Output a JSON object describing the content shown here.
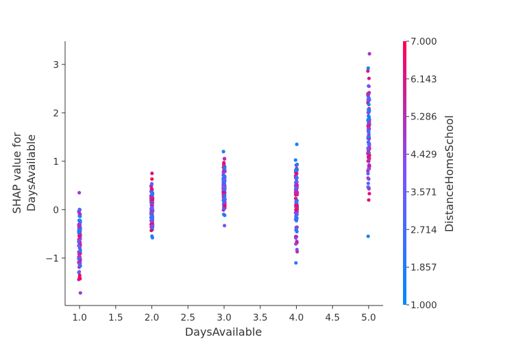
{
  "chart_data": {
    "type": "scatter",
    "xlabel": "DaysAvailable",
    "ylabel_lines": [
      "SHAP value for",
      "DaysAvailable"
    ],
    "xlim": [
      0.8,
      5.2
    ],
    "ylim": [
      -1.98,
      3.48
    ],
    "x_ticks": [
      1.0,
      1.5,
      2.0,
      2.5,
      3.0,
      3.5,
      4.0,
      4.5,
      5.0
    ],
    "x_tick_labels": [
      "1.0",
      "1.5",
      "2.0",
      "2.5",
      "3.0",
      "3.5",
      "4.0",
      "4.5",
      "5.0"
    ],
    "y_ticks": [
      -1,
      0,
      1,
      2,
      3
    ],
    "y_tick_labels": [
      "−1",
      "0",
      "1",
      "2",
      "3"
    ],
    "colorbar": {
      "label": "DistanceHomeSchool",
      "range": [
        1.0,
        7.0
      ],
      "tick_values": [
        1.0,
        1.857,
        2.714,
        3.571,
        4.429,
        5.286,
        6.143,
        7.0
      ],
      "tick_labels": [
        "1.000",
        "1.857",
        "2.714",
        "3.571",
        "4.429",
        "5.286",
        "6.143",
        "7.000"
      ],
      "low_color": "#008bfb",
      "mid_color": "#7c52ff",
      "high_color": "#ff0051"
    },
    "groups": [
      {
        "x": 1.0,
        "ymin": -1.72,
        "ymax": 0.35,
        "center": -0.7
      },
      {
        "x": 2.0,
        "ymin": -0.58,
        "ymax": 0.75,
        "center": 0.05
      },
      {
        "x": 3.0,
        "ymin": -0.33,
        "ymax": 1.2,
        "center": 0.45
      },
      {
        "x": 4.0,
        "ymin": -1.1,
        "ymax": 1.35,
        "center": 0.3
      },
      {
        "x": 5.0,
        "ymin": -0.55,
        "ymax": 3.22,
        "center": 1.4
      }
    ],
    "points_per_group": 110
  }
}
